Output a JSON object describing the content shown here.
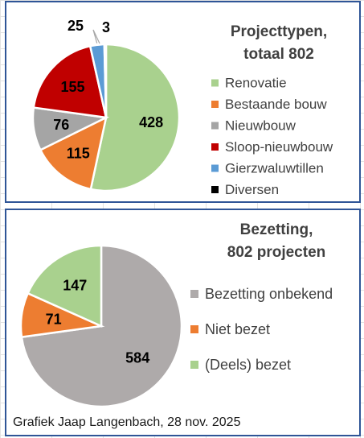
{
  "chart_data": [
    {
      "type": "pie",
      "title_lines": [
        "Projecttypen,",
        "totaal 802"
      ],
      "legend_position": "right",
      "categories": [
        "Renovatie",
        "Bestaande bouw",
        "Nieuwbouw",
        "Sloop-nieuwbouw",
        "Gierzwaluwtillen",
        "Diversen"
      ],
      "values": [
        428,
        115,
        76,
        155,
        25,
        3
      ],
      "colors": [
        "#a9d18e",
        "#ed7d31",
        "#a5a5a5",
        "#c00000",
        "#5b9bd5",
        "#000000"
      ]
    },
    {
      "type": "pie",
      "title_lines": [
        "Bezetting,",
        "802 projecten"
      ],
      "legend_position": "right",
      "categories": [
        "Bezetting onbekend",
        "Niet bezet",
        "(Deels) bezet"
      ],
      "values": [
        584,
        71,
        147
      ],
      "colors": [
        "#aeaaaa",
        "#ed7d31",
        "#a9d18e"
      ]
    }
  ],
  "footer": "Grafiek Jaap Langenbach, 28 nov. 2025"
}
